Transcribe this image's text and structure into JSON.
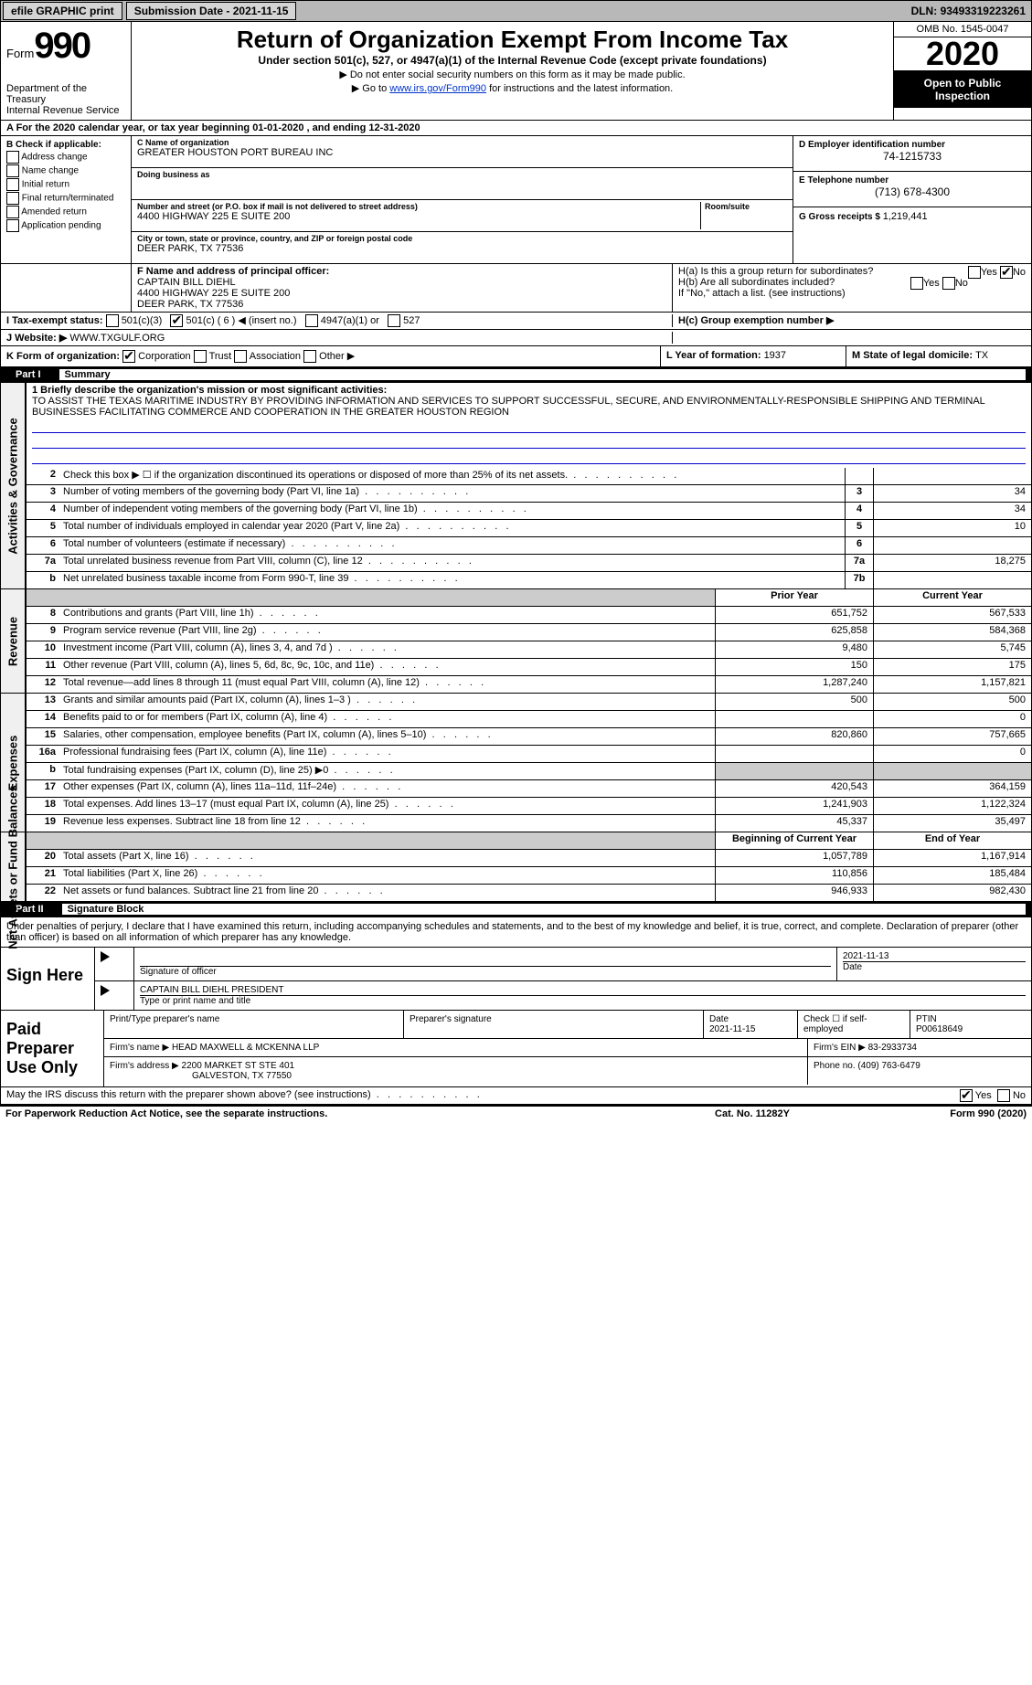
{
  "topbar": {
    "efile": "efile GRAPHIC print",
    "submission_label": "Submission Date - ",
    "submission_date": "2021-11-15",
    "dln_label": "DLN: ",
    "dln": "93493319223261"
  },
  "header": {
    "form_label": "Form",
    "form_num": "990",
    "dept1": "Department of the Treasury",
    "dept2": "Internal Revenue Service",
    "title": "Return of Organization Exempt From Income Tax",
    "sub1": "Under section 501(c), 527, or 4947(a)(1) of the Internal Revenue Code (except private foundations)",
    "sub2": "▶ Do not enter social security numbers on this form as it may be made public.",
    "sub3_pre": "▶ Go to ",
    "sub3_link": "www.irs.gov/Form990",
    "sub3_post": " for instructions and the latest information.",
    "omb": "OMB No. 1545-0047",
    "year": "2020",
    "open": "Open to Public Inspection"
  },
  "row_a": "A For the 2020 calendar year, or tax year beginning 01-01-2020    , and ending 12-31-2020",
  "box_b": {
    "title": "B Check if applicable:",
    "opts": [
      "Address change",
      "Name change",
      "Initial return",
      "Final return/terminated",
      "Amended return",
      "Application pending"
    ]
  },
  "box_c": {
    "name_lbl": "C Name of organization",
    "name": "GREATER HOUSTON PORT BUREAU INC",
    "dba_lbl": "Doing business as",
    "dba": "",
    "addr_lbl": "Number and street (or P.O. box if mail is not delivered to street address)",
    "addr": "4400 HIGHWAY 225 E SUITE 200",
    "room_lbl": "Room/suite",
    "city_lbl": "City or town, state or province, country, and ZIP or foreign postal code",
    "city": "DEER PARK, TX  77536"
  },
  "box_d": {
    "ein_lbl": "D Employer identification number",
    "ein": "74-1215733",
    "tel_lbl": "E Telephone number",
    "tel": "(713) 678-4300",
    "gross_lbl": "G Gross receipts $ ",
    "gross": "1,219,441"
  },
  "box_f": {
    "lbl": "F Name and address of principal officer:",
    "name": "CAPTAIN BILL DIEHL",
    "line1": "4400 HIGHWAY 225 E SUITE 200",
    "line2": "DEER PARK, TX  77536"
  },
  "box_h": {
    "ha_lbl": "H(a)  Is this a group return for subordinates?",
    "hb_lbl": "H(b)  Are all subordinates included?",
    "hb_note": "If \"No,\" attach a list. (see instructions)",
    "hc_lbl": "H(c)  Group exemption number ▶",
    "yes": "Yes",
    "no": "No"
  },
  "row_i": {
    "lbl": "I    Tax-exempt status:",
    "o1": "501(c)(3)",
    "o2": "501(c) ( 6 ) ◀ (insert no.)",
    "o3": "4947(a)(1) or",
    "o4": "527"
  },
  "row_j": {
    "lbl": "J   Website: ▶",
    "val": "WWW.TXGULF.ORG"
  },
  "row_k": {
    "lbl": "K Form of organization:",
    "corp": "Corporation",
    "trust": "Trust",
    "assoc": "Association",
    "other": "Other ▶"
  },
  "row_l": {
    "lbl": "L Year of formation: ",
    "val": "1937"
  },
  "row_m": {
    "lbl": "M State of legal domicile: ",
    "val": "TX"
  },
  "part1": {
    "label": "Part I",
    "title": "Summary"
  },
  "mission": {
    "q": "1  Briefly describe the organization's mission or most significant activities:",
    "text": "TO ASSIST THE TEXAS MARITIME INDUSTRY BY PROVIDING INFORMATION AND SERVICES TO SUPPORT SUCCESSFUL, SECURE, AND ENVIRONMENTALLY-RESPONSIBLE SHIPPING AND TERMINAL BUSINESSES FACILITATING COMMERCE AND COOPERATION IN THE GREATER HOUSTON REGION"
  },
  "gov_rows": [
    {
      "n": "2",
      "d": "Check this box ▶ ☐ if the organization discontinued its operations or disposed of more than 25% of its net assets.",
      "box": "",
      "val": ""
    },
    {
      "n": "3",
      "d": "Number of voting members of the governing body (Part VI, line 1a)",
      "box": "3",
      "val": "34"
    },
    {
      "n": "4",
      "d": "Number of independent voting members of the governing body (Part VI, line 1b)",
      "box": "4",
      "val": "34"
    },
    {
      "n": "5",
      "d": "Total number of individuals employed in calendar year 2020 (Part V, line 2a)",
      "box": "5",
      "val": "10"
    },
    {
      "n": "6",
      "d": "Total number of volunteers (estimate if necessary)",
      "box": "6",
      "val": ""
    },
    {
      "n": "7a",
      "d": "Total unrelated business revenue from Part VIII, column (C), line 12",
      "box": "7a",
      "val": "18,275"
    },
    {
      "n": "b",
      "d": "Net unrelated business taxable income from Form 990-T, line 39",
      "box": "7b",
      "val": ""
    }
  ],
  "rev_header": {
    "prior": "Prior Year",
    "curr": "Current Year"
  },
  "rev_rows": [
    {
      "n": "8",
      "d": "Contributions and grants (Part VIII, line 1h)",
      "p": "651,752",
      "c": "567,533"
    },
    {
      "n": "9",
      "d": "Program service revenue (Part VIII, line 2g)",
      "p": "625,858",
      "c": "584,368"
    },
    {
      "n": "10",
      "d": "Investment income (Part VIII, column (A), lines 3, 4, and 7d )",
      "p": "9,480",
      "c": "5,745"
    },
    {
      "n": "11",
      "d": "Other revenue (Part VIII, column (A), lines 5, 6d, 8c, 9c, 10c, and 11e)",
      "p": "150",
      "c": "175"
    },
    {
      "n": "12",
      "d": "Total revenue—add lines 8 through 11 (must equal Part VIII, column (A), line 12)",
      "p": "1,287,240",
      "c": "1,157,821"
    }
  ],
  "exp_rows": [
    {
      "n": "13",
      "d": "Grants and similar amounts paid (Part IX, column (A), lines 1–3 )",
      "p": "500",
      "c": "500"
    },
    {
      "n": "14",
      "d": "Benefits paid to or for members (Part IX, column (A), line 4)",
      "p": "",
      "c": "0"
    },
    {
      "n": "15",
      "d": "Salaries, other compensation, employee benefits (Part IX, column (A), lines 5–10)",
      "p": "820,860",
      "c": "757,665"
    },
    {
      "n": "16a",
      "d": "Professional fundraising fees (Part IX, column (A), line 11e)",
      "p": "",
      "c": "0"
    },
    {
      "n": "b",
      "d": "Total fundraising expenses (Part IX, column (D), line 25) ▶0",
      "p": "",
      "c": "",
      "gray": true
    },
    {
      "n": "17",
      "d": "Other expenses (Part IX, column (A), lines 11a–11d, 11f–24e)",
      "p": "420,543",
      "c": "364,159"
    },
    {
      "n": "18",
      "d": "Total expenses. Add lines 13–17 (must equal Part IX, column (A), line 25)",
      "p": "1,241,903",
      "c": "1,122,324"
    },
    {
      "n": "19",
      "d": "Revenue less expenses. Subtract line 18 from line 12",
      "p": "45,337",
      "c": "35,497"
    }
  ],
  "net_header": {
    "b": "Beginning of Current Year",
    "e": "End of Year"
  },
  "net_rows": [
    {
      "n": "20",
      "d": "Total assets (Part X, line 16)",
      "p": "1,057,789",
      "c": "1,167,914"
    },
    {
      "n": "21",
      "d": "Total liabilities (Part X, line 26)",
      "p": "110,856",
      "c": "185,484"
    },
    {
      "n": "22",
      "d": "Net assets or fund balances. Subtract line 21 from line 20",
      "p": "946,933",
      "c": "982,430"
    }
  ],
  "part2": {
    "label": "Part II",
    "title": "Signature Block"
  },
  "penalties": "Under penalties of perjury, I declare that I have examined this return, including accompanying schedules and statements, and to the best of my knowledge and belief, it is true, correct, and complete. Declaration of preparer (other than officer) is based on all information of which preparer has any knowledge.",
  "sign": {
    "here": "Sign Here",
    "sig_lbl": "Signature of officer",
    "date_lbl": "Date",
    "date": "2021-11-13",
    "name_lbl": "Type or print name and title",
    "name": "CAPTAIN BILL DIEHL PRESIDENT"
  },
  "paid": {
    "title": "Paid Preparer Use Only",
    "print_lbl": "Print/Type preparer's name",
    "sig_lbl": "Preparer's signature",
    "date_lbl": "Date",
    "date": "2021-11-15",
    "check_lbl": "Check ☐ if self-employed",
    "ptin_lbl": "PTIN",
    "ptin": "P00618649",
    "firm_name_lbl": "Firm's name    ▶",
    "firm_name": "HEAD MAXWELL & MCKENNA LLP",
    "firm_ein_lbl": "Firm's EIN ▶",
    "firm_ein": "83-2933734",
    "firm_addr_lbl": "Firm's address ▶",
    "firm_addr1": "2200 MARKET ST STE 401",
    "firm_addr2": "GALVESTON, TX  77550",
    "phone_lbl": "Phone no. ",
    "phone": "(409) 763-6479"
  },
  "discuss": "May the IRS discuss this return with the preparer shown above? (see instructions)",
  "footer": {
    "l": "For Paperwork Reduction Act Notice, see the separate instructions.",
    "m": "Cat. No. 11282Y",
    "r": "Form 990 (2020)"
  },
  "vert_labels": {
    "gov": "Activities & Governance",
    "rev": "Revenue",
    "exp": "Expenses",
    "net": "Net Assets or Fund Balances"
  }
}
